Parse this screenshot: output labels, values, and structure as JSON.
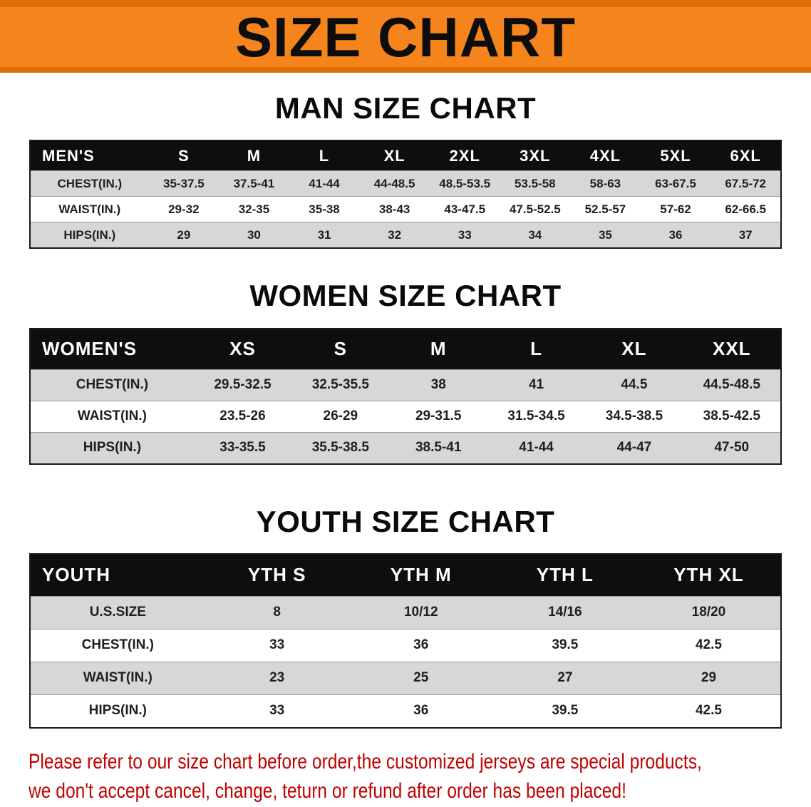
{
  "banner": {
    "title": "SIZE CHART"
  },
  "colors": {
    "banner_orange": "#f6841d",
    "banner_edge": "#e06f08",
    "header_black": "#0e0e0e",
    "row_gray": "#d7d7d7",
    "disclaimer_red": "#c00000"
  },
  "sections": [
    {
      "id": "men",
      "heading": "MAN SIZE CHART",
      "table": {
        "header": [
          "MEN'S",
          "S",
          "M",
          "L",
          "XL",
          "2XL",
          "3XL",
          "4XL",
          "5XL",
          "6XL"
        ],
        "rows": [
          [
            "CHEST(IN.)",
            "35-37.5",
            "37.5-41",
            "41-44",
            "44-48.5",
            "48.5-53.5",
            "53.5-58",
            "58-63",
            "63-67.5",
            "67.5-72"
          ],
          [
            "WAIST(IN.)",
            "29-32",
            "32-35",
            "35-38",
            "38-43",
            "43-47.5",
            "47.5-52.5",
            "52.5-57",
            "57-62",
            "62-66.5"
          ],
          [
            "HIPS(IN.)",
            "29",
            "30",
            "31",
            "32",
            "33",
            "34",
            "35",
            "36",
            "37"
          ]
        ]
      }
    },
    {
      "id": "women",
      "heading": "WOMEN SIZE CHART",
      "table": {
        "header": [
          "WOMEN'S",
          "XS",
          "S",
          "M",
          "L",
          "XL",
          "XXL"
        ],
        "rows": [
          [
            "CHEST(IN.)",
            "29.5-32.5",
            "32.5-35.5",
            "38",
            "41",
            "44.5",
            "44.5-48.5"
          ],
          [
            "WAIST(IN.)",
            "23.5-26",
            "26-29",
            "29-31.5",
            "31.5-34.5",
            "34.5-38.5",
            "38.5-42.5"
          ],
          [
            "HIPS(IN.)",
            "33-35.5",
            "35.5-38.5",
            "38.5-41",
            "41-44",
            "44-47",
            "47-50"
          ]
        ]
      }
    },
    {
      "id": "youth",
      "heading": "YOUTH SIZE CHART",
      "table": {
        "header": [
          "YOUTH",
          "YTH S",
          "YTH M",
          "YTH L",
          "YTH XL"
        ],
        "rows": [
          [
            "U.S.SIZE",
            "8",
            "10/12",
            "14/16",
            "18/20"
          ],
          [
            "CHEST(IN.)",
            "33",
            "36",
            "39.5",
            "42.5"
          ],
          [
            "WAIST(IN.)",
            "23",
            "25",
            "27",
            "29"
          ],
          [
            "HIPS(IN.)",
            "33",
            "36",
            "39.5",
            "42.5"
          ]
        ]
      }
    }
  ],
  "disclaimer": {
    "line1": "Please refer to our size chart before order,the customized jerseys are special products,",
    "line2": "we don't accept cancel, change, teturn or refund after order has been placed!"
  }
}
